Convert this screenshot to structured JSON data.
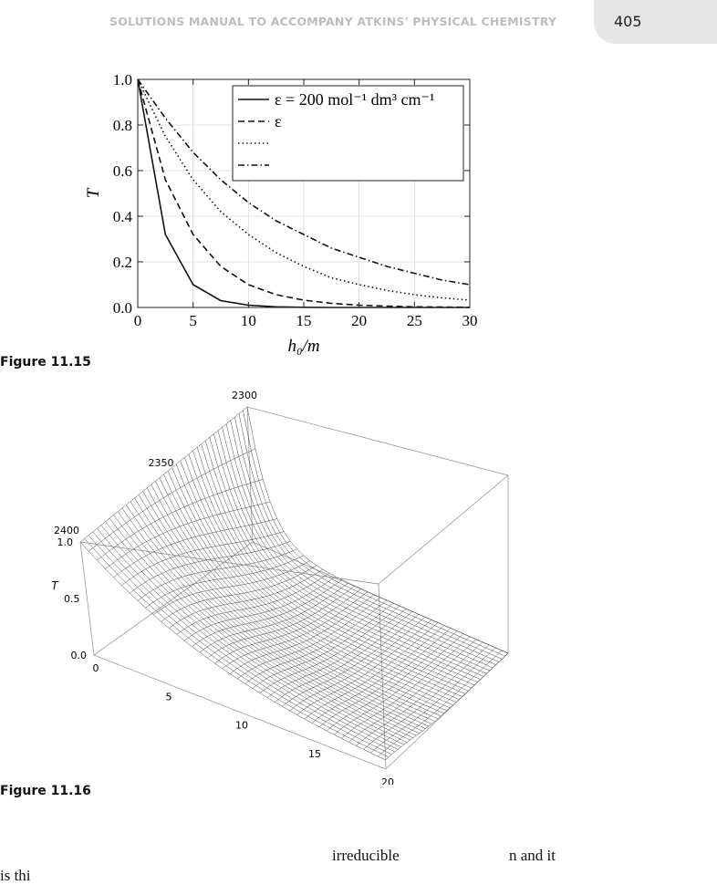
{
  "header": {
    "running_title": "SOLUTIONS MANUAL TO ACCOMPANY ATKINS' PHYSICAL CHEMISTRY",
    "page_number": "405"
  },
  "figures": [
    {
      "caption": "Figure 11.15"
    },
    {
      "caption": "Figure 11.16"
    }
  ],
  "chart_data": [
    {
      "type": "line",
      "xlabel": "h₀/m",
      "ylabel": "T",
      "xlim": [
        0,
        30
      ],
      "ylim": [
        0,
        1
      ],
      "x_ticks": [
        "0",
        "5",
        "10",
        "15",
        "20",
        "25",
        "30"
      ],
      "y_ticks": [
        "0.0",
        "0.2",
        "0.4",
        "0.6",
        "0.8",
        "1.0"
      ],
      "legend_position": "top-right",
      "x": [
        0,
        2.5,
        5,
        7.5,
        10,
        12.5,
        15,
        17.5,
        20,
        22.5,
        25,
        27.5,
        30
      ],
      "series": [
        {
          "name": "ε = 200 mol⁻¹ dm³ cm⁻¹",
          "style": "solid",
          "values": [
            1.0,
            0.32,
            0.1,
            0.03,
            0.01,
            0.003,
            0.001,
            0.0,
            0.0,
            0.0,
            0.0,
            0.0,
            0.0
          ]
        },
        {
          "name": "ε",
          "style": "dashed",
          "values": [
            1.0,
            0.56,
            0.32,
            0.18,
            0.1,
            0.056,
            0.032,
            0.018,
            0.01,
            0.006,
            0.003,
            0.002,
            0.001
          ]
        },
        {
          "name": "",
          "style": "dotted",
          "values": [
            1.0,
            0.75,
            0.56,
            0.42,
            0.32,
            0.24,
            0.18,
            0.13,
            0.1,
            0.075,
            0.056,
            0.042,
            0.032
          ]
        },
        {
          "name": "",
          "style": "dashdot",
          "values": [
            1.0,
            0.83,
            0.68,
            0.56,
            0.46,
            0.38,
            0.32,
            0.26,
            0.22,
            0.18,
            0.15,
            0.12,
            0.1
          ]
        }
      ]
    },
    {
      "type": "surface",
      "z_label": "T",
      "x_ticks": [
        "0",
        "5",
        "10",
        "15",
        "20"
      ],
      "y_ticks": [
        "2300",
        "2350",
        "2400"
      ],
      "z_ticks": [
        "0.0",
        "0.5",
        "1.0"
      ],
      "x_range": [
        0,
        20
      ],
      "y_range": [
        2300,
        2400
      ],
      "z_range": [
        0,
        1
      ]
    }
  ],
  "body": {
    "line1_word1": "irreducible",
    "line1_word2": "n and it",
    "line2": "is thi"
  }
}
